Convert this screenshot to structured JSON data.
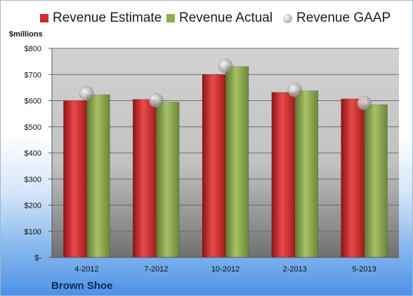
{
  "chart_data": {
    "type": "bar",
    "ylabel": "$millions",
    "categories": [
      "4-2012",
      "7-2012",
      "10-2012",
      "2-2013",
      "5-2013"
    ],
    "series": [
      {
        "name": "Revenue Estimate",
        "kind": "bar",
        "color": "#d22a2a",
        "values": [
          600,
          605,
          700,
          632,
          607
        ]
      },
      {
        "name": "Revenue Actual",
        "kind": "bar",
        "color": "#8fac4e",
        "values": [
          623,
          595,
          731,
          638,
          585
        ]
      },
      {
        "name": "Revenue GAAP",
        "kind": "marker",
        "color": "#b9b9b9",
        "values": [
          627,
          600,
          733,
          640,
          590
        ]
      }
    ],
    "ylim": [
      0,
      800
    ],
    "yticks": [
      0,
      100,
      200,
      300,
      400,
      500,
      600,
      700,
      800
    ],
    "ytick_labels": [
      "$-",
      "$100",
      "$200",
      "$300",
      "$400",
      "$500",
      "$600",
      "$700",
      "$800"
    ],
    "grid": true,
    "legend_position": "top"
  },
  "footer_title": "Brown Shoe"
}
